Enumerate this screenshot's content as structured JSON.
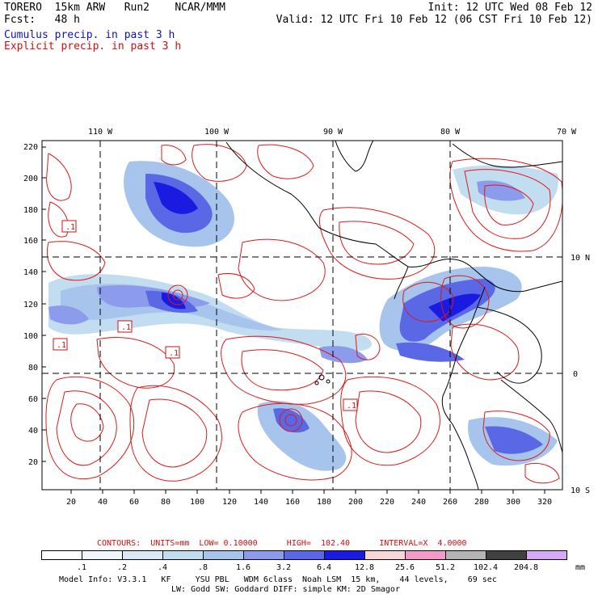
{
  "header": {
    "model": "TORERO  15km ARW   Run2    NCAR/MMM",
    "forecast": "Fcst:   48 h",
    "init": "Init: 12 UTC Wed 08 Feb 12",
    "valid": "Valid: 12 UTC Fri 10 Feb 12 (06 CST Fri 10 Feb 12)",
    "field1": "Cumulus precip. in past 3 h",
    "field2": "Explicit precip. in past 3 h",
    "field1_color": "#1010c8",
    "field2_color": "#d01010"
  },
  "map": {
    "lon_labels": [
      "110 W",
      "100 W",
      "90 W",
      "80 W",
      "70 W"
    ],
    "lat_labels": [
      "10 N",
      "0",
      "10 S"
    ],
    "y_ticks": [
      "220",
      "200",
      "180",
      "160",
      "140",
      "120",
      "100",
      "80",
      "60",
      "40",
      "20"
    ],
    "x_ticks": [
      "20",
      "40",
      "60",
      "80",
      "100",
      "120",
      "140",
      "160",
      "180",
      "200",
      "220",
      "240",
      "260",
      "280",
      "300",
      "320"
    ],
    "low_marks": [
      ".1",
      ".1",
      ".1",
      ".1",
      ".1"
    ]
  },
  "contours": {
    "label": "CONTOURS:  UNITS=mm  LOW= 0.10000      HIGH=  102.40      INTERVAL=X  4.0000"
  },
  "legend": {
    "values": [
      ".1",
      ".2",
      ".4",
      ".8",
      "1.6",
      "3.2",
      "6.4",
      "12.8",
      "25.6",
      "51.2",
      "102.4",
      "204.8"
    ],
    "unit": "mm",
    "colors": [
      "#ffffff",
      "#f0f6fb",
      "#dbe9f6",
      "#c2dcf0",
      "#a7c5ec",
      "#8c9bec",
      "#5a68e6",
      "#1a1ae0",
      "#f7d7d7",
      "#f29ac8",
      "#b4b4b4",
      "#404040",
      "#d7a8f5"
    ]
  },
  "model_info": {
    "line1": "Model Info: V3.3.1   KF     YSU PBL   WDM 6class  Noah LSM  15 km,    44 levels,    69 sec",
    "line2": "LW: Godd SW: Goddard DIFF: simple KM: 2D Smagor"
  }
}
